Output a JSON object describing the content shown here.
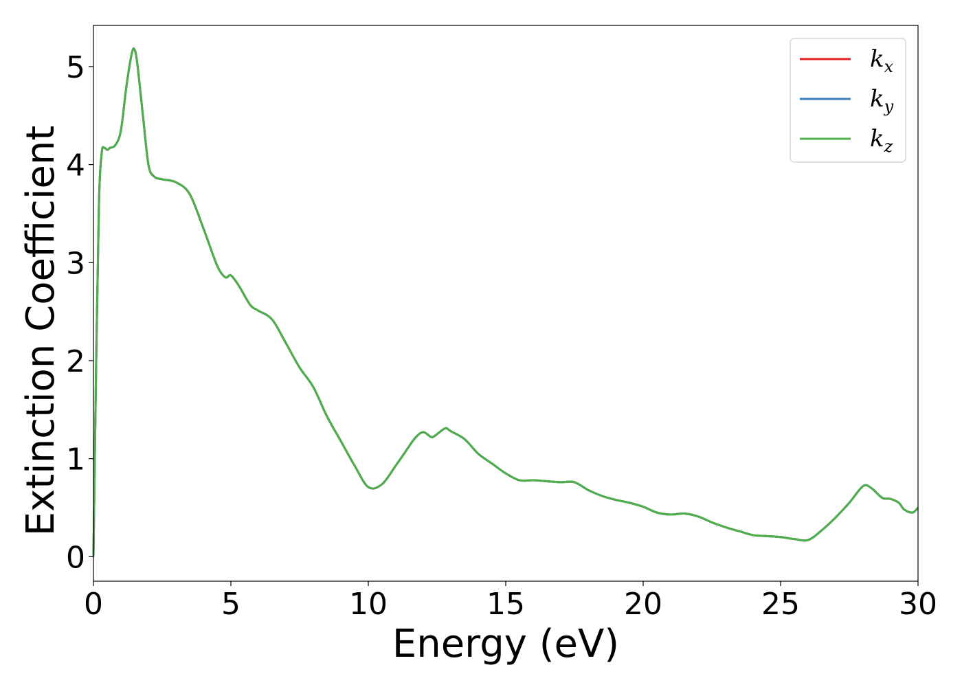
{
  "chart_data": {
    "type": "line",
    "xlabel": "Energy (eV)",
    "ylabel": "Extinction Coefficient",
    "xlim": [
      0,
      30
    ],
    "ylim": [
      -0.25,
      5.42
    ],
    "x_ticks": [
      0,
      5,
      10,
      15,
      20,
      25,
      30
    ],
    "y_ticks": [
      0,
      1,
      2,
      3,
      4,
      5
    ],
    "grid": false,
    "legend_position": "top-right",
    "x": [
      0,
      0.1,
      0.2,
      0.3,
      0.4,
      0.5,
      0.6,
      0.8,
      1.0,
      1.2,
      1.4,
      1.5,
      1.6,
      1.8,
      2.0,
      2.2,
      2.5,
      3.0,
      3.5,
      4.0,
      4.5,
      4.8,
      5.0,
      5.3,
      5.7,
      6.0,
      6.5,
      7.0,
      7.5,
      8.0,
      8.5,
      9.0,
      9.5,
      10.0,
      10.5,
      11.0,
      11.3,
      11.7,
      12.0,
      12.3,
      12.5,
      12.8,
      13.0,
      13.5,
      14.0,
      14.5,
      15.0,
      15.5,
      16.0,
      16.5,
      17.0,
      17.5,
      18.0,
      18.5,
      19.0,
      19.5,
      20.0,
      20.5,
      21.0,
      21.5,
      22.0,
      22.5,
      23.0,
      23.5,
      24.0,
      24.5,
      25.0,
      25.5,
      26.0,
      26.5,
      27.0,
      27.5,
      28.0,
      28.3,
      28.7,
      29.0,
      29.3,
      29.5,
      29.8,
      30.0
    ],
    "series": [
      {
        "name": "k_x",
        "label_main": "k",
        "label_sub": "x",
        "color": "#e41a1c",
        "y": [
          0.0,
          2.0,
          3.6,
          4.12,
          4.17,
          4.15,
          4.17,
          4.2,
          4.35,
          4.8,
          5.14,
          5.17,
          5.02,
          4.5,
          4.0,
          3.88,
          3.85,
          3.82,
          3.7,
          3.35,
          2.97,
          2.85,
          2.87,
          2.76,
          2.57,
          2.51,
          2.42,
          2.18,
          1.93,
          1.73,
          1.43,
          1.18,
          0.93,
          0.71,
          0.74,
          0.93,
          1.05,
          1.21,
          1.27,
          1.22,
          1.25,
          1.31,
          1.28,
          1.2,
          1.05,
          0.95,
          0.85,
          0.78,
          0.78,
          0.77,
          0.76,
          0.76,
          0.68,
          0.62,
          0.58,
          0.55,
          0.51,
          0.45,
          0.43,
          0.44,
          0.41,
          0.35,
          0.3,
          0.26,
          0.22,
          0.21,
          0.2,
          0.18,
          0.17,
          0.27,
          0.4,
          0.55,
          0.72,
          0.7,
          0.6,
          0.59,
          0.55,
          0.48,
          0.45,
          0.5
        ]
      },
      {
        "name": "k_y",
        "label_main": "k",
        "label_sub": "y",
        "color": "#377eb8",
        "y": [
          0.0,
          2.0,
          3.6,
          4.12,
          4.17,
          4.15,
          4.17,
          4.2,
          4.35,
          4.8,
          5.14,
          5.17,
          5.02,
          4.5,
          4.0,
          3.88,
          3.85,
          3.82,
          3.7,
          3.35,
          2.97,
          2.85,
          2.87,
          2.76,
          2.57,
          2.51,
          2.42,
          2.18,
          1.93,
          1.73,
          1.43,
          1.18,
          0.93,
          0.71,
          0.74,
          0.93,
          1.05,
          1.21,
          1.27,
          1.22,
          1.25,
          1.31,
          1.28,
          1.2,
          1.05,
          0.95,
          0.85,
          0.78,
          0.78,
          0.77,
          0.76,
          0.76,
          0.68,
          0.62,
          0.58,
          0.55,
          0.51,
          0.45,
          0.43,
          0.44,
          0.41,
          0.35,
          0.3,
          0.26,
          0.22,
          0.21,
          0.2,
          0.18,
          0.17,
          0.27,
          0.4,
          0.55,
          0.72,
          0.7,
          0.6,
          0.59,
          0.55,
          0.48,
          0.45,
          0.5
        ]
      },
      {
        "name": "k_z",
        "label_main": "k",
        "label_sub": "z",
        "color": "#4daf4a",
        "y": [
          0.0,
          2.0,
          3.6,
          4.12,
          4.17,
          4.15,
          4.17,
          4.2,
          4.35,
          4.8,
          5.14,
          5.17,
          5.02,
          4.5,
          4.0,
          3.88,
          3.85,
          3.82,
          3.7,
          3.35,
          2.97,
          2.85,
          2.87,
          2.76,
          2.57,
          2.51,
          2.42,
          2.18,
          1.93,
          1.73,
          1.43,
          1.18,
          0.93,
          0.71,
          0.74,
          0.93,
          1.05,
          1.21,
          1.27,
          1.22,
          1.25,
          1.31,
          1.28,
          1.2,
          1.05,
          0.95,
          0.85,
          0.78,
          0.78,
          0.77,
          0.76,
          0.76,
          0.68,
          0.62,
          0.58,
          0.55,
          0.51,
          0.45,
          0.43,
          0.44,
          0.41,
          0.35,
          0.3,
          0.26,
          0.22,
          0.21,
          0.2,
          0.18,
          0.17,
          0.27,
          0.4,
          0.55,
          0.72,
          0.7,
          0.6,
          0.59,
          0.55,
          0.48,
          0.45,
          0.5
        ]
      }
    ]
  }
}
